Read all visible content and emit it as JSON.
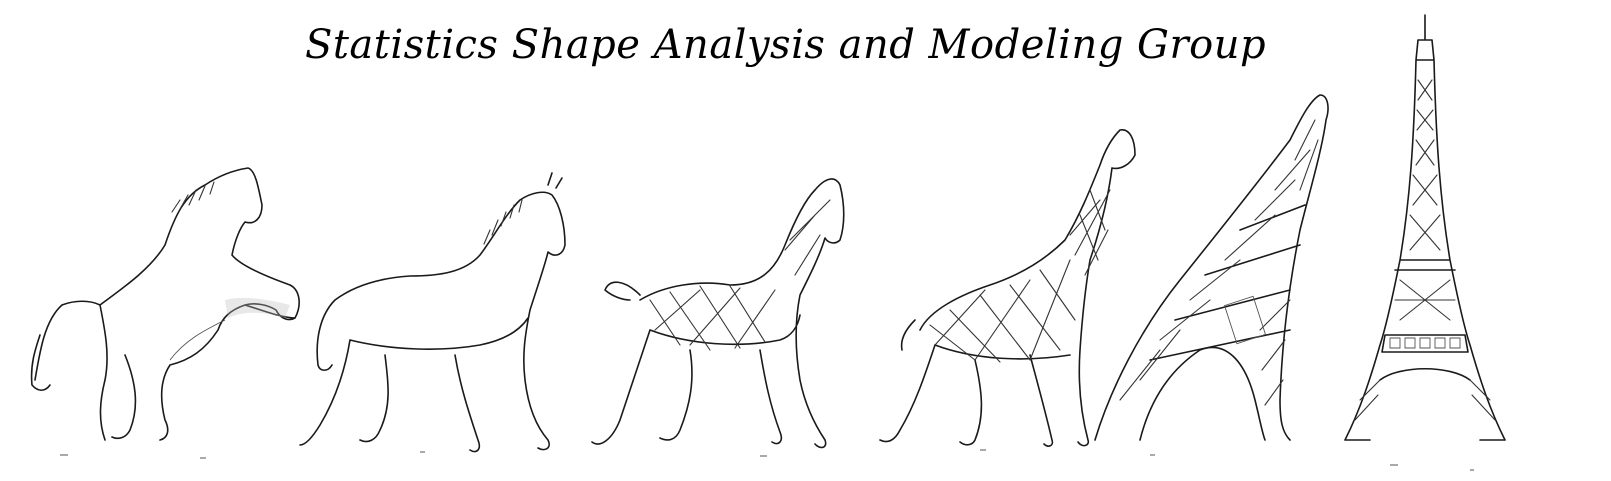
{
  "title": "Statistics Shape Analysis and Modeling Group",
  "figures": [
    {
      "name": "horse-rearing"
    },
    {
      "name": "horse-trotting"
    },
    {
      "name": "horse-lattice"
    },
    {
      "name": "giraffe-lattice"
    },
    {
      "name": "bent-tower"
    },
    {
      "name": "eiffel-tower"
    }
  ]
}
